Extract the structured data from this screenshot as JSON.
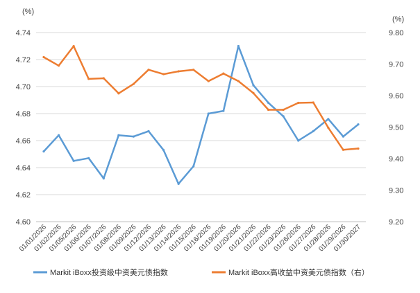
{
  "chart_data": {
    "type": "line",
    "title": "",
    "left_axis": {
      "unit_label": "(%)",
      "ylim": [
        4.6,
        4.74
      ],
      "ticks": [
        "4.60",
        "4.62",
        "4.64",
        "4.66",
        "4.68",
        "4.70",
        "4.72",
        "4.74"
      ]
    },
    "right_axis": {
      "unit_label": "(%)",
      "ylim": [
        9.2,
        9.8
      ],
      "ticks": [
        "9.20",
        "9.30",
        "9.40",
        "9.50",
        "9.60",
        "9.70",
        "9.80"
      ]
    },
    "grid": true,
    "legend_position": "bottom",
    "categories": [
      "01/01/2026",
      "01/02/2026",
      "01/05/2026",
      "01/06/2026",
      "01/07/2026",
      "01/08/2026",
      "01/09/2026",
      "01/12/2026",
      "01/13/2026",
      "01/14/2026",
      "01/15/2026",
      "01/16/2026",
      "01/19/2026",
      "01/20/2026",
      "01/21/2026",
      "01/22/2026",
      "01/23/2026",
      "01/26/2026",
      "01/27/2026",
      "01/28/2026",
      "01/29/2026",
      "01/30/2027"
    ],
    "series": [
      {
        "name": "Markit iBoxx投资级中资美元债指数",
        "axis": "left",
        "color": "#5b9bd5",
        "values": [
          4.652,
          4.664,
          4.645,
          4.647,
          4.632,
          4.664,
          4.663,
          4.667,
          4.653,
          4.628,
          4.641,
          4.68,
          4.682,
          4.73,
          4.701,
          4.688,
          4.678,
          4.66,
          4.667,
          4.676,
          4.663,
          4.672
        ]
      },
      {
        "name": "Markit iBoxx高收益中资美元债指数（右）",
        "axis": "right",
        "color": "#ed7d31",
        "values": [
          9.722,
          9.695,
          9.757,
          9.653,
          9.655,
          9.607,
          9.637,
          9.682,
          9.668,
          9.677,
          9.682,
          9.646,
          9.67,
          9.646,
          9.608,
          9.555,
          9.555,
          9.577,
          9.578,
          9.498,
          9.428,
          9.432
        ]
      }
    ]
  }
}
